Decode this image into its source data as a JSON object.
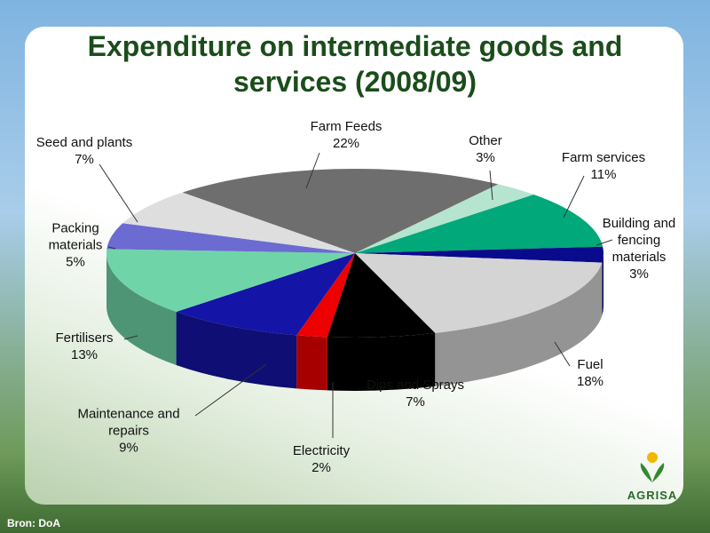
{
  "chart_data": {
    "type": "pie",
    "title": "Expenditure on intermediate goods and services (2008/09)",
    "categories": [
      "Farm Feeds",
      "Other",
      "Farm services",
      "Building and fencing materials",
      "Fuel",
      "Dips and Sprays",
      "Electricity",
      "Maintenance and repairs",
      "Fertilisers",
      "Packing materials",
      "Seed and plants"
    ],
    "values": [
      22,
      3,
      11,
      3,
      18,
      7,
      2,
      9,
      13,
      5,
      7
    ],
    "value_labels": [
      "22%",
      "3%",
      "11%",
      "3%",
      "18%",
      "7%",
      "2%",
      "9%",
      "13%",
      "5%",
      "7%"
    ],
    "colors": [
      "#6e6e6e",
      "#b5e4cf",
      "#00a87a",
      "#0a0a8c",
      "#d4d4d4",
      "#000000",
      "#ee0000",
      "#1414a6",
      "#6fd5a8",
      "#6b6bd2",
      "#dedede"
    ]
  },
  "source": "Bron:  DoA",
  "logo": "AGRISA"
}
